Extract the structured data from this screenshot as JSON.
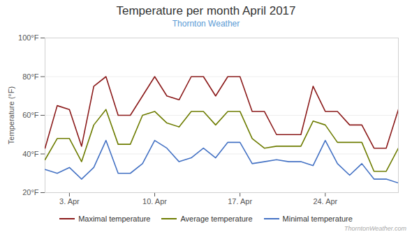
{
  "chart_data": {
    "type": "line",
    "title": "Temperature per month April 2017",
    "subtitle": "Thornton Weather",
    "ylabel": "Temperature (°F)",
    "annotations": [
      "ThorntonWeather.com"
    ],
    "x": [
      1,
      2,
      3,
      4,
      5,
      6,
      7,
      8,
      9,
      10,
      11,
      12,
      13,
      14,
      15,
      16,
      17,
      18,
      19,
      20,
      21,
      22,
      23,
      24,
      25,
      26,
      27,
      28,
      29,
      30
    ],
    "series": [
      {
        "name": "Maximal temperature",
        "color": "#8b1a1a",
        "values": [
          43,
          65,
          63,
          44,
          75,
          80,
          60,
          60,
          70,
          80,
          70,
          68,
          80,
          80,
          70,
          80,
          80,
          62,
          62,
          50,
          50,
          50,
          75,
          62,
          62,
          55,
          55,
          43,
          43,
          63
        ]
      },
      {
        "name": "Average temperature",
        "color": "#6d7c00",
        "values": [
          37,
          48,
          48,
          36,
          55,
          63,
          45,
          45,
          60,
          62,
          56,
          54,
          62,
          62,
          55,
          62,
          62,
          48,
          43,
          44,
          44,
          44,
          57,
          55,
          46,
          46,
          46,
          31,
          31,
          43
        ]
      },
      {
        "name": "Minimal temperature",
        "color": "#4472c4",
        "values": [
          32,
          30,
          33,
          27,
          33,
          47,
          30,
          30,
          35,
          47,
          43,
          36,
          38,
          43,
          38,
          46,
          46,
          35,
          36,
          37,
          36,
          36,
          34,
          47,
          35,
          29,
          35,
          27,
          27,
          25
        ]
      }
    ],
    "xlim": [
      1,
      30
    ],
    "xticks": [
      {
        "value": 3,
        "label": "3. Apr"
      },
      {
        "value": 10,
        "label": "10. Apr"
      },
      {
        "value": 17,
        "label": "17. Apr"
      },
      {
        "value": 24,
        "label": "24. Apr"
      }
    ],
    "ylim": [
      20,
      100
    ],
    "yticks": [
      {
        "value": 20,
        "label": "20°F"
      },
      {
        "value": 40,
        "label": "40°F"
      },
      {
        "value": 60,
        "label": "60°F"
      },
      {
        "value": 80,
        "label": "80°F"
      },
      {
        "value": 100,
        "label": "100°F"
      }
    ],
    "grid": true,
    "legend": "bottom"
  }
}
